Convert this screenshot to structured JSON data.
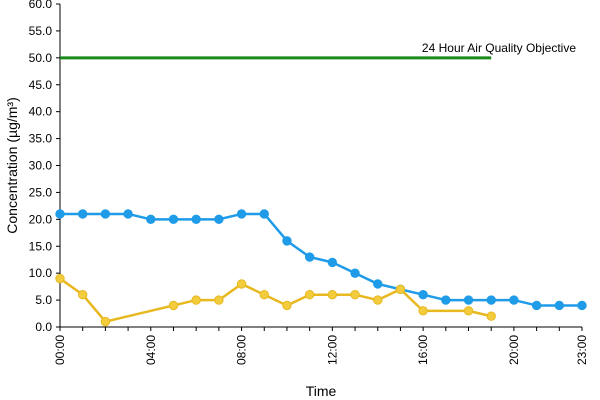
{
  "chart_data": {
    "type": "line",
    "xlabel": "Time",
    "ylabel": "Concentration (µg/m³)",
    "ylim": [
      0,
      60
    ],
    "y_ticks": [
      "0.0",
      "5.0",
      "10.0",
      "15.0",
      "20.0",
      "25.0",
      "30.0",
      "35.0",
      "40.0",
      "45.0",
      "50.0",
      "55.0",
      "60.0"
    ],
    "xlim": [
      0,
      23
    ],
    "x_ticks": [
      {
        "value": 0,
        "label": "00:00"
      },
      {
        "value": 4,
        "label": "04:00"
      },
      {
        "value": 8,
        "label": "08:00"
      },
      {
        "value": 12,
        "label": "12:00"
      },
      {
        "value": 16,
        "label": "16:00"
      },
      {
        "value": 20,
        "label": "20:00"
      },
      {
        "value": 23,
        "label": "23:00"
      }
    ],
    "grid": false,
    "reference_line": {
      "label": "24 Hour Air Quality Objective",
      "y": 50,
      "x_start": 0,
      "x_end": 19,
      "color": "#1a8a1a"
    },
    "series": [
      {
        "color": "#1f9be8",
        "marker_fill": "#1f9be8",
        "x": [
          0,
          1,
          2,
          3,
          4,
          5,
          6,
          7,
          8,
          9,
          10,
          11,
          12,
          13,
          14,
          15,
          16,
          17,
          18,
          19,
          20,
          21,
          22,
          23
        ],
        "y": [
          21,
          21,
          21,
          21,
          20,
          20,
          20,
          20,
          21,
          21,
          16,
          13,
          12,
          10,
          8,
          7,
          6,
          5,
          5,
          5,
          5,
          4,
          4,
          4
        ]
      },
      {
        "color": "#e8b820",
        "marker_fill": "#f2cc3c",
        "x": [
          0,
          1,
          2,
          5,
          6,
          7,
          8,
          9,
          10,
          11,
          12,
          13,
          14,
          15,
          16,
          18,
          19
        ],
        "y": [
          9,
          6,
          1,
          4,
          5,
          5,
          8,
          6,
          4,
          6,
          6,
          6,
          5,
          7,
          3,
          3,
          2
        ]
      }
    ]
  }
}
